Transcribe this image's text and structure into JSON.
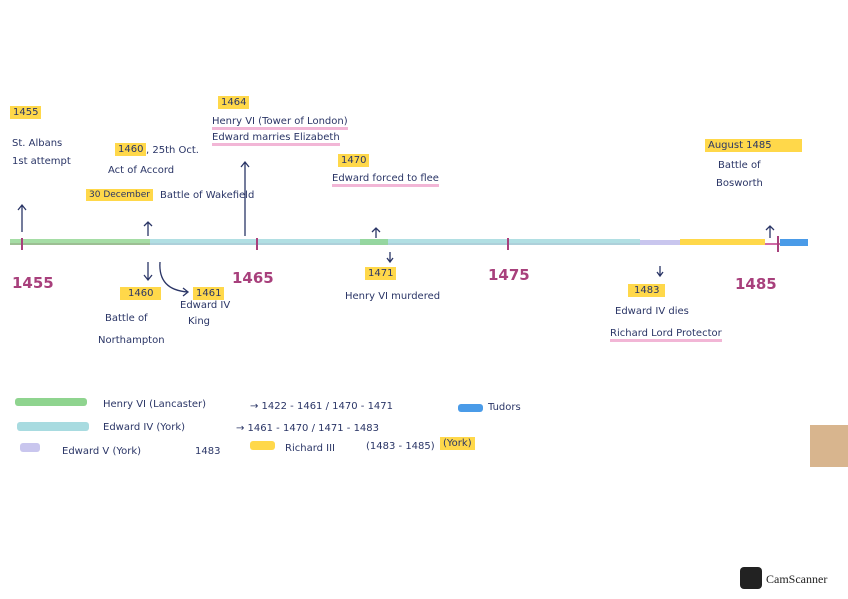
{
  "above": [
    {
      "year": "1455",
      "lines": [
        "St. Albans",
        "1st attempt"
      ]
    },
    {
      "year": "1460",
      "date": ", 25th Oct.",
      "lines": [
        "Act of Accord"
      ],
      "note_date": "30 December",
      "note": "Battle of Wakefield"
    },
    {
      "year": "1464",
      "lines": [
        "Henry VI (Tower of London)",
        "Edward marries Elizabeth"
      ]
    },
    {
      "year": "1470",
      "lines": [
        "Edward forced to flee"
      ]
    },
    {
      "year": "August 1485",
      "lines": [
        "Battle of",
        "Bosworth"
      ]
    }
  ],
  "below": [
    {
      "year": "1460",
      "lines": [
        "Battle of",
        "Northampton"
      ]
    },
    {
      "year": "1461",
      "lines": [
        "Edward IV",
        "King"
      ]
    },
    {
      "year": "1471",
      "lines": [
        "Henry VI murdered"
      ]
    },
    {
      "year": "1483",
      "lines": [
        "Edward IV dies",
        "Richard Lord Protector"
      ]
    }
  ],
  "axis_labels": [
    "1455",
    "1465",
    "1475",
    "1485"
  ],
  "legend": [
    {
      "name": "Henry VI (Lancaster)",
      "years": "→ 1422 - 1461 / 1470 - 1471"
    },
    {
      "name": "Tudors"
    },
    {
      "name": "Edward IV (York)",
      "years": "→ 1461 - 1470 / 1471 - 1483"
    },
    {
      "name": "Edward V (York)",
      "years": "1483"
    },
    {
      "name": "Richard III",
      "years": "(1483 - 1485)",
      "house": "(York)"
    }
  ],
  "footer": {
    "app": "CamScanner"
  }
}
